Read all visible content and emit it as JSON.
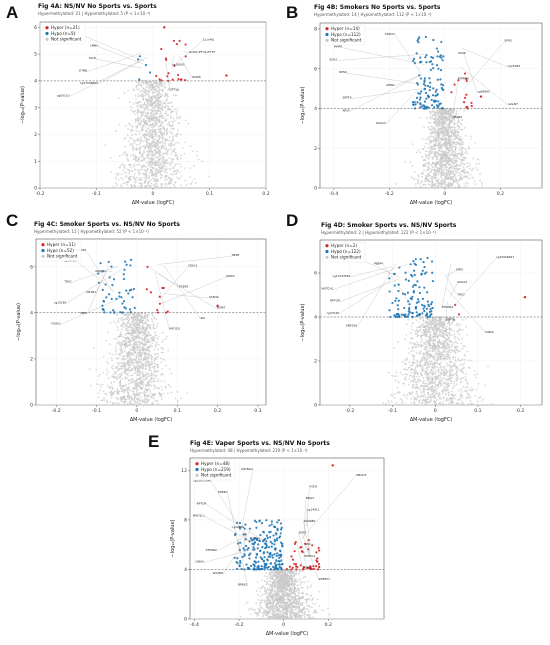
{
  "figure": {
    "panels": [
      {
        "letter": "A",
        "title": "Fig 4A: NS/NV No Sports vs. Sports",
        "subtitle": "Hypermethylated: 21 | Hypomethylated: 5 (P < 1×10⁻⁴)",
        "legend": [
          "Hyper (n=21)",
          "Hypo (n=5)",
          "Not significant"
        ],
        "gene_labels": [
          "cg18393904",
          "C1orf61",
          "LMNA",
          "GCM1;IFT41;IFT47",
          "KLHL",
          "cg19093",
          "DTNB",
          "PADI6",
          "cg27048862",
          "CPT1A",
          "cg00110"
        ]
      },
      {
        "letter": "B",
        "title": "Fig 4B: Smokers No Sports vs. Sports",
        "subtitle": "Hypermethylated: 14 | Hypomethylated: 112 (P < 1×10⁻⁴)",
        "legend": [
          "Hyper (n=14)",
          "Hypo (n=112)",
          "Not significant"
        ],
        "gene_labels": [
          "CDH23",
          "SFRS",
          "MAPK",
          "TAOK",
          "SOX2",
          "cg15083",
          "RPS6",
          "PTPRN2",
          "AHRR",
          "cg09893",
          "SEPT9",
          "GALNT",
          "NFIA",
          "ZMIZ1",
          "RASA3"
        ]
      },
      {
        "letter": "C",
        "title": "Fig 4C: Smoker Sports vs. NS/NV No Sports",
        "subtitle": "Hypermethylated: 11 | Hypomethylated: 52 (P < 1×10⁻⁴)",
        "legend": [
          "Hyper (n=11)",
          "Hypo (n=52)",
          "Not significant"
        ],
        "gene_labels": [
          "PRDM16",
          "TNXB",
          "cg26023",
          "CDK11",
          "ARID3A",
          "GRIK2",
          "TESC",
          "PCBP2",
          "CNTN1",
          "SCN3A",
          "cg19283",
          "WDR7",
          "MN1",
          "SKI",
          "FOXK1",
          "MYO1D"
        ]
      },
      {
        "letter": "D",
        "title": "Fig 4D: Smoker Sports vs. NS/NV Sports",
        "subtitle": "Hypermethylated: 2 | Hypomethylated: 122 (P < 1×10⁻⁴)",
        "legend": [
          "Hyper (n=2)",
          "Hypo (n=122)",
          "Not significant"
        ],
        "gene_labels": [
          "HSPB2",
          "cg24926667",
          "PEBP4",
          "SFRS",
          "cg17224581",
          "RASA3",
          "NOTCH1",
          "TRIO",
          "RPTOR",
          "PTPRN2",
          "cg27036",
          "SEPT9",
          "ZNF536",
          "GNAS"
        ]
      },
      {
        "letter": "E",
        "title": "Fig 4E: Vaper Sports vs. NS/NV No Sports",
        "subtitle": "Hypermethylated: 48 | Hypomethylated: 219 (P < 1×10⁻⁴)",
        "legend": [
          "Hyper (n=48)",
          "Hypo (n=219)",
          "Not significant"
        ],
        "gene_labels": [
          "CRYBG3",
          "SMAD3",
          "cg23053540",
          "FGF8",
          "PDE4D",
          "NRG2",
          "RPTOR",
          "cg14011",
          "MAD1L1",
          "ADARB2",
          "cg02009",
          "SFRS",
          "CPT1A",
          "SNX",
          "PTPRN2",
          "TCERG1",
          "GNAS",
          "SEPT9",
          "KCNIP4",
          "ZNF827",
          "BRSK2"
        ]
      }
    ]
  },
  "chart_data": [
    {
      "type": "scatter",
      "title": "Fig 4A: NS/NV No Sports vs. Sports",
      "xlabel": "ΔM-value (logFC)",
      "ylabel": "−log₁₀(P-value)",
      "xlim": [
        -0.2,
        0.2
      ],
      "ylim": [
        0,
        6.2
      ],
      "xticks": [
        -0.2,
        -0.1,
        0.0,
        0.1,
        0.2
      ],
      "yticks": [
        0,
        1,
        2,
        3,
        4,
        5,
        6
      ],
      "threshold": 4,
      "legend_position": "top-left",
      "grid": true,
      "colors": {
        "hyper": "#d62728",
        "hypo": "#1f77b4",
        "ns": "#c8c8c8"
      },
      "series": [
        {
          "name": "Hyper (n=21)",
          "n": 21,
          "x_range": [
            0.005,
            0.06
          ],
          "y_range": [
            4.0,
            5.6
          ],
          "outliers": [
            [
              0.02,
              6.0
            ],
            [
              0.13,
              4.2
            ]
          ]
        },
        {
          "name": "Hypo (n=5)",
          "n": 5,
          "x_range": [
            -0.03,
            -0.005
          ],
          "y_range": [
            4.0,
            5.3
          ],
          "outliers": []
        },
        {
          "name": "Not significant",
          "n": 1400,
          "x_sd": 0.032,
          "y_max": 4.0
        }
      ]
    },
    {
      "type": "scatter",
      "title": "Fig 4B: Smokers No Sports vs. Sports",
      "xlabel": "ΔM-value (logFC)",
      "ylabel": "−log₁₀(P-value)",
      "xlim": [
        -0.45,
        0.35
      ],
      "ylim": [
        0,
        8.3
      ],
      "xticks": [
        -0.4,
        -0.2,
        0.0,
        0.2
      ],
      "yticks": [
        0,
        2,
        4,
        6,
        8
      ],
      "threshold": 4,
      "legend_position": "top-left",
      "grid": true,
      "colors": {
        "hyper": "#d62728",
        "hypo": "#1f77b4",
        "ns": "#c8c8c8"
      },
      "series": [
        {
          "name": "Hyper (n=14)",
          "n": 14,
          "x_range": [
            0.01,
            0.1
          ],
          "y_range": [
            4.0,
            6.0
          ],
          "outliers": [
            [
              0.13,
              4.6
            ]
          ]
        },
        {
          "name": "Hypo (n=112)",
          "n": 112,
          "x_range": [
            -0.12,
            -0.005
          ],
          "y_range": [
            4.0,
            7.6
          ],
          "outliers": []
        },
        {
          "name": "Not significant",
          "n": 1400,
          "x_sd": 0.055,
          "y_max": 4.0
        }
      ]
    },
    {
      "type": "scatter",
      "title": "Fig 4C: Smoker Sports vs. NS/NV No Sports",
      "xlabel": "ΔM-value (logFC)",
      "ylabel": "−log₁₀(P-value)",
      "xlim": [
        -0.25,
        0.32
      ],
      "ylim": [
        0,
        7.2
      ],
      "xticks": [
        -0.2,
        -0.1,
        0.0,
        0.1,
        0.2,
        0.3
      ],
      "yticks": [
        0,
        2,
        4,
        6
      ],
      "threshold": 4,
      "legend_position": "top-left",
      "grid": true,
      "colors": {
        "hyper": "#d62728",
        "hypo": "#1f77b4",
        "ns": "#c8c8c8"
      },
      "series": [
        {
          "name": "Hyper (n=11)",
          "n": 11,
          "x_range": [
            0.01,
            0.08
          ],
          "y_range": [
            4.0,
            6.0
          ],
          "outliers": [
            [
              0.2,
              4.3
            ]
          ]
        },
        {
          "name": "Hypo (n=52)",
          "n": 52,
          "x_range": [
            -0.1,
            -0.005
          ],
          "y_range": [
            4.0,
            6.4
          ],
          "outliers": []
        },
        {
          "name": "Not significant",
          "n": 1400,
          "x_sd": 0.045,
          "y_max": 4.0
        }
      ]
    },
    {
      "type": "scatter",
      "title": "Fig 4D: Smoker Sports vs. NS/NV Sports",
      "xlabel": "ΔM-value (logFC)",
      "ylabel": "−log₁₀(P-value)",
      "xlim": [
        -0.27,
        0.25
      ],
      "ylim": [
        0,
        7.5
      ],
      "xticks": [
        -0.2,
        -0.1,
        0.0,
        0.1,
        0.2
      ],
      "yticks": [
        0,
        2,
        4,
        6
      ],
      "threshold": 4,
      "legend_position": "top-left",
      "grid": true,
      "colors": {
        "hyper": "#d62728",
        "hypo": "#1f77b4",
        "ns": "#c8c8c8"
      },
      "series": [
        {
          "name": "Hyper (n=2)",
          "n": 2,
          "x_range": [
            0.02,
            0.06
          ],
          "y_range": [
            4.1,
            4.6
          ],
          "outliers": [
            [
              0.21,
              4.9
            ]
          ]
        },
        {
          "name": "Hypo (n=122)",
          "n": 122,
          "x_range": [
            -0.11,
            -0.005
          ],
          "y_range": [
            4.0,
            6.7
          ],
          "outliers": []
        },
        {
          "name": "Not significant",
          "n": 1400,
          "x_sd": 0.05,
          "y_max": 4.0
        }
      ]
    },
    {
      "type": "scatter",
      "title": "Fig 4E: Vaper Sports vs. NS/NV No Sports",
      "xlabel": "ΔM-value (logFC)",
      "ylabel": "−log₁₀(P-value)",
      "xlim": [
        -0.42,
        0.45
      ],
      "ylim": [
        0,
        13
      ],
      "xticks": [
        -0.4,
        -0.2,
        0.0,
        0.2
      ],
      "yticks": [
        0,
        4,
        8,
        12
      ],
      "threshold": 4,
      "legend_position": "top-left",
      "grid": true,
      "colors": {
        "hyper": "#d62728",
        "hypo": "#1f77b4",
        "ns": "#c8c8c8"
      },
      "series": [
        {
          "name": "Hyper (n=48)",
          "n": 48,
          "x_range": [
            0.01,
            0.16
          ],
          "y_range": [
            4.0,
            6.5
          ],
          "outliers": [
            [
              0.22,
              12.4
            ]
          ]
        },
        {
          "name": "Hypo (n=219)",
          "n": 219,
          "x_range": [
            -0.22,
            -0.005
          ],
          "y_range": [
            4.0,
            8.0
          ],
          "outliers": []
        },
        {
          "name": "Not significant",
          "n": 1400,
          "x_sd": 0.07,
          "y_max": 4.0
        }
      ]
    }
  ]
}
